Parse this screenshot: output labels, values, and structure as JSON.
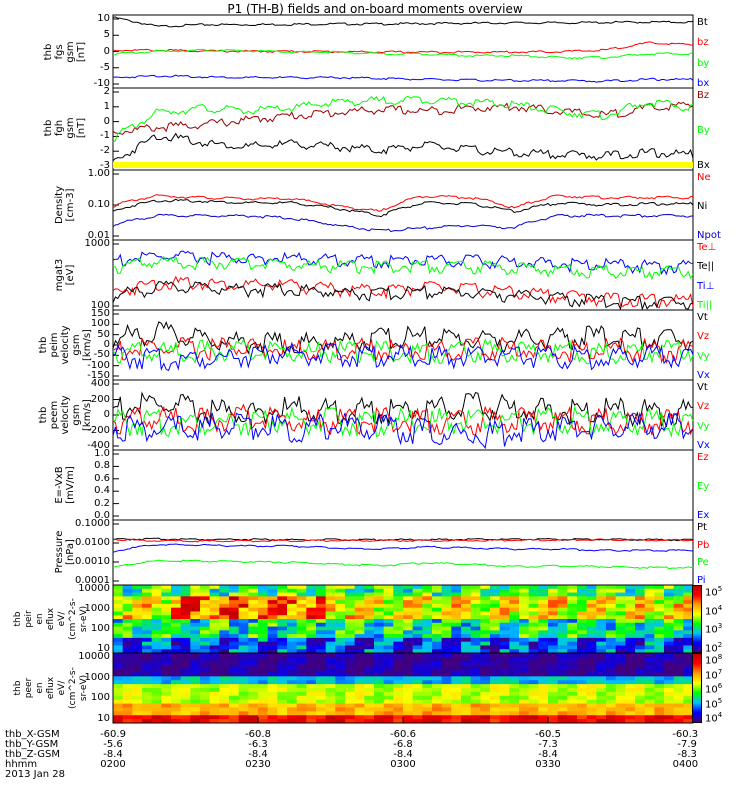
{
  "title": "P1 (TH-B) fields and on-board moments overview",
  "chart_data": [
    {
      "type": "line",
      "panel": "fgs",
      "ylabel": "thb\nfgs\ngsm\n[nT]",
      "ylim": [
        -10,
        10
      ],
      "yticks": [
        "10",
        "5",
        "0",
        "-5",
        "-10"
      ],
      "series": [
        {
          "name": "Bt",
          "color": "#000000",
          "values": [
            9.5,
            7,
            7.5,
            7.5,
            7.6,
            7.7,
            7.7,
            7.8,
            7.9,
            8.0,
            8.0,
            8.1,
            8.2,
            8.2
          ]
        },
        {
          "name": "bz",
          "color": "#ff0000",
          "values": [
            0.5,
            0.5,
            0.3,
            0.2,
            0.2,
            0.1,
            0,
            0,
            0,
            0,
            0.1,
            0.5,
            2.5,
            2
          ]
        },
        {
          "name": "by",
          "color": "#00ff00",
          "values": [
            -0.5,
            0.2,
            0.5,
            0.3,
            0,
            0,
            -0.5,
            -0.5,
            -1,
            -1,
            -1.5,
            -1.5,
            -0.5,
            -0.5
          ]
        },
        {
          "name": "bx",
          "color": "#0000ff",
          "values": [
            -7,
            -6.5,
            -6.8,
            -7,
            -7,
            -7,
            -7.2,
            -7.5,
            -7.7,
            -7.8,
            -7.8,
            -8,
            -7.5,
            -7.5
          ]
        }
      ]
    },
    {
      "type": "line",
      "panel": "fgh",
      "ylabel": "thb\nfgh\ngsm\n[nT]",
      "ylim": [
        -3.5,
        2
      ],
      "yticks": [
        "2",
        "1",
        "0",
        "-1",
        "-2",
        "-3"
      ],
      "series": [
        {
          "name": "Bz",
          "color": "#990000",
          "values": [
            -0.8,
            -0.5,
            -0.3,
            0,
            0.3,
            0.5,
            0.7,
            0.6,
            0.8,
            0.9,
            0.6,
            0.3,
            0.8,
            1
          ]
        },
        {
          "name": "By",
          "color": "#00ff00",
          "values": [
            -1.2,
            0.5,
            0.8,
            0.6,
            0.8,
            1.2,
            1.3,
            1.4,
            1.2,
            1.0,
            0.6,
            0.3,
            1.2,
            0.8
          ]
        },
        {
          "name": "Bx",
          "color": "#000000",
          "values": [
            -2.8,
            -1.0,
            -1.5,
            -1.8,
            -1.6,
            -1.8,
            -2.0,
            -1.7,
            -2.0,
            -2.2,
            -2.3,
            -2.4,
            -2.2,
            -2.3
          ]
        }
      ]
    },
    {
      "type": "line",
      "panel": "density",
      "ylabel": "Density\n[cm-3]",
      "yscale": "log",
      "ylim": [
        0.01,
        1.5
      ],
      "yticks": [
        "1.00",
        "0.10",
        "0.01"
      ],
      "series": [
        {
          "name": "Ne",
          "color": "#ff0000",
          "values": [
            0.12,
            0.25,
            0.22,
            0.2,
            0.2,
            0.12,
            0.08,
            0.25,
            0.22,
            0.1,
            0.25,
            0.22,
            0.22,
            0.22
          ]
        },
        {
          "name": "Ni",
          "color": "#000000",
          "values": [
            0.08,
            0.18,
            0.17,
            0.15,
            0.15,
            0.1,
            0.06,
            0.15,
            0.14,
            0.08,
            0.15,
            0.13,
            0.14,
            0.14
          ]
        },
        {
          "name": "Npot",
          "color": "#0000cc",
          "values": [
            0.03,
            0.06,
            0.06,
            0.06,
            0.05,
            0.03,
            0.02,
            0.025,
            0.03,
            0.025,
            0.06,
            0.06,
            0.06,
            0.06
          ]
        }
      ]
    },
    {
      "type": "line",
      "panel": "temperature",
      "ylabel": "mgat3\n[eV]",
      "yscale": "log",
      "ylim": [
        50,
        2000
      ],
      "yticks": [
        "1000",
        "100"
      ],
      "series": [
        {
          "name": "Te⊥",
          "color": "#ff0000",
          "values": [
            150,
            250,
            250,
            220,
            220,
            180,
            170,
            200,
            180,
            150,
            130,
            110,
            100,
            100
          ]
        },
        {
          "name": "Te||",
          "color": "#000000",
          "values": [
            120,
            200,
            200,
            180,
            180,
            150,
            140,
            160,
            150,
            130,
            110,
            95,
            90,
            90
          ]
        },
        {
          "name": "Ti⊥",
          "color": "#0000ff",
          "values": [
            800,
            1000,
            950,
            900,
            900,
            850,
            800,
            850,
            800,
            750,
            700,
            650,
            600,
            600
          ]
        },
        {
          "name": "Ti||",
          "color": "#00ff00",
          "values": [
            600,
            750,
            700,
            700,
            650,
            600,
            600,
            620,
            600,
            550,
            500,
            480,
            450,
            450
          ]
        }
      ]
    },
    {
      "type": "line",
      "panel": "peim velocity",
      "ylabel": "thb\npeim\nvelocity\ngsm\n[km/s]",
      "ylim": [
        -150,
        150
      ],
      "yticks": [
        "150",
        "100",
        "50",
        "0",
        "-50",
        "-100",
        "-150"
      ],
      "series": [
        {
          "name": "Vt",
          "color": "#000000",
          "values": [
            50,
            80,
            50,
            40,
            30,
            40,
            50,
            60,
            50,
            45,
            50,
            60,
            50,
            50
          ]
        },
        {
          "name": "Vz",
          "color": "#ff0000",
          "values": [
            0,
            10,
            5,
            20,
            0,
            5,
            10,
            0,
            5,
            10,
            0,
            5,
            0,
            0
          ]
        },
        {
          "name": "Vy",
          "color": "#00ff00",
          "values": [
            0,
            -10,
            -5,
            0,
            -5,
            -5,
            0,
            -10,
            0,
            -5,
            0,
            -10,
            0,
            0
          ]
        },
        {
          "name": "Vx",
          "color": "#0000ff",
          "values": [
            -20,
            -40,
            -30,
            -20,
            -10,
            -20,
            -20,
            -30,
            -25,
            -20,
            -30,
            -30,
            -20,
            -20
          ]
        }
      ]
    },
    {
      "type": "line",
      "panel": "peem velocity",
      "ylabel": "thb\npeem\nvelocity\ngsm\n[km/s]",
      "ylim": [
        -400,
        400
      ],
      "yticks": [
        "400",
        "200",
        "0",
        "-200",
        "-400"
      ],
      "series": [
        {
          "name": "Vt",
          "color": "#000000",
          "values": [
            150,
            200,
            120,
            100,
            150,
            120,
            130,
            150,
            180,
            150,
            130,
            120,
            100,
            100
          ]
        },
        {
          "name": "Vz",
          "color": "#ff0000",
          "values": [
            20,
            30,
            0,
            50,
            20,
            0,
            30,
            20,
            0,
            30,
            20,
            20,
            0,
            0
          ]
        },
        {
          "name": "Vy",
          "color": "#00ff00",
          "values": [
            0,
            -20,
            0,
            0,
            20,
            0,
            -10,
            0,
            10,
            0,
            20,
            0,
            0,
            0
          ]
        },
        {
          "name": "Vx",
          "color": "#0000ff",
          "values": [
            -50,
            -100,
            -60,
            -40,
            -80,
            -50,
            -60,
            -120,
            -150,
            -120,
            -80,
            -60,
            -50,
            -50
          ]
        }
      ]
    },
    {
      "type": "line",
      "panel": "E=-VxB",
      "ylabel": "E=-VxB\n[mV/m]",
      "ylim": [
        0,
        1
      ],
      "yticks": [
        "1.0",
        "0.8",
        "0.6",
        "0.4",
        "0.2",
        "0.0"
      ],
      "series": [
        {
          "name": "Ez",
          "color": "#ff0000",
          "values": []
        },
        {
          "name": "Ey",
          "color": "#00ff00",
          "values": []
        },
        {
          "name": "Ex",
          "color": "#0000ff",
          "values": []
        }
      ]
    },
    {
      "type": "line",
      "panel": "pressure",
      "ylabel": "Pressure\n[nPa]",
      "yscale": "log",
      "ylim": [
        0.0001,
        0.2
      ],
      "yticks": [
        "0.1000",
        "0.0100",
        "0.0010",
        "0.0001"
      ],
      "series": [
        {
          "name": "Pt",
          "color": "#000000",
          "values": [
            0.022,
            0.023,
            0.022,
            0.022,
            0.021,
            0.021,
            0.021,
            0.021,
            0.022,
            0.022,
            0.022,
            0.022,
            0.021,
            0.021
          ]
        },
        {
          "name": "Pb",
          "color": "#ff0000",
          "values": [
            0.022,
            0.018,
            0.018,
            0.018,
            0.019,
            0.019,
            0.019,
            0.019,
            0.019,
            0.02,
            0.02,
            0.021,
            0.02,
            0.02
          ]
        },
        {
          "name": "Pe",
          "color": "#00ff00",
          "values": [
            0.0008,
            0.0018,
            0.0017,
            0.0016,
            0.0015,
            0.0012,
            0.001,
            0.0014,
            0.0012,
            0.0009,
            0.001,
            0.0009,
            0.0008,
            0.0008
          ]
        },
        {
          "name": "Pi",
          "color": "#0000ff",
          "values": [
            0.005,
            0.012,
            0.011,
            0.01,
            0.01,
            0.008,
            0.007,
            0.009,
            0.008,
            0.007,
            0.007,
            0.006,
            0.006,
            0.006
          ]
        }
      ]
    },
    {
      "type": "heatmap",
      "panel": "peir",
      "ylabel": "thb\npeir\nen\neflux\neV/\n(cm^2-s-\nsr-eV)",
      "yticks": [
        "10000",
        "1000",
        "100",
        "10"
      ],
      "colorbar_ticks": [
        "10^5",
        "10^4",
        "10^3",
        "10^2"
      ]
    },
    {
      "type": "heatmap",
      "panel": "peer",
      "ylabel": "thb\npeer\nen\neflux\neV/\n(cm^2-s-\nsr-eV)",
      "yticks": [
        "10000",
        "1000",
        "100",
        "10"
      ],
      "colorbar_ticks": [
        "10^8",
        "10^7",
        "10^6",
        "10^5",
        "10^4"
      ]
    }
  ],
  "footer": {
    "row_labels": [
      "thb_X-GSM",
      "thb_Y-GSM",
      "thb_Z-GSM",
      "hhmm",
      "2013 Jan 28"
    ],
    "columns": [
      [
        "-60.9",
        "-5.6",
        "-8.4",
        "0200"
      ],
      [
        "-60.8",
        "-6.3",
        "-8.4",
        "0230"
      ],
      [
        "-60.6",
        "-6.8",
        "-8.4",
        "0300"
      ],
      [
        "-60.5",
        "-7.3",
        "-8.4",
        "0330"
      ],
      [
        "-60.3",
        "-7.9",
        "-8.3",
        "0400"
      ]
    ]
  }
}
